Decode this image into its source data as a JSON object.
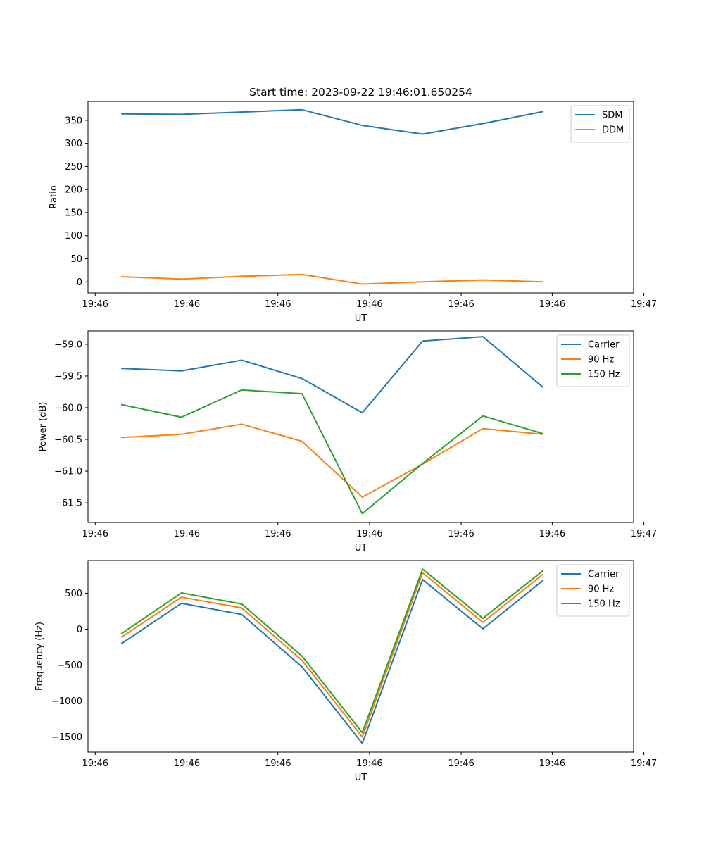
{
  "title": "Start time: 2023-09-22 19:46:01.650254",
  "colors": {
    "blue": "#1f77b4",
    "orange": "#ff7f0e",
    "green": "#2ca02c"
  },
  "chart_data": [
    {
      "type": "line",
      "title": "Start time: 2023-09-22 19:46:01.650254",
      "xlabel": "UT",
      "ylabel": "Ratio",
      "xlim": [
        -0.55,
        8.5
      ],
      "ylim": [
        -24,
        391
      ],
      "xticks": [
        {
          "v": -0.43,
          "label": "19:46"
        },
        {
          "v": 1.09,
          "label": "19:46"
        },
        {
          "v": 2.6,
          "label": "19:46"
        },
        {
          "v": 4.12,
          "label": "19:46"
        },
        {
          "v": 5.64,
          "label": "19:46"
        },
        {
          "v": 7.15,
          "label": "19:46"
        },
        {
          "v": 8.67,
          "label": "19:47"
        }
      ],
      "yticks": [
        0,
        50,
        100,
        150,
        200,
        250,
        300,
        350
      ],
      "x": [
        0,
        1,
        2,
        3,
        4,
        5,
        6,
        7
      ],
      "series": [
        {
          "name": "SDM",
          "color": "#1f77b4",
          "values": [
            364,
            363,
            368,
            373,
            339,
            320,
            343,
            369
          ]
        },
        {
          "name": "DDM",
          "color": "#ff7f0e",
          "values": [
            11,
            6,
            12,
            16,
            -5,
            0,
            4,
            0
          ]
        }
      ],
      "legend": "top-right"
    },
    {
      "type": "line",
      "xlabel": "UT",
      "ylabel": "Power (dB)",
      "xlim": [
        -0.55,
        8.5
      ],
      "ylim": [
        -61.81,
        -58.79
      ],
      "xticks": [
        {
          "v": -0.43,
          "label": "19:46"
        },
        {
          "v": 1.09,
          "label": "19:46"
        },
        {
          "v": 2.6,
          "label": "19:46"
        },
        {
          "v": 4.12,
          "label": "19:46"
        },
        {
          "v": 5.64,
          "label": "19:46"
        },
        {
          "v": 7.15,
          "label": "19:46"
        },
        {
          "v": 8.67,
          "label": "19:47"
        }
      ],
      "yticks": [
        {
          "v": -61.5,
          "label": "−61.5"
        },
        {
          "v": -61.0,
          "label": "−61.0"
        },
        {
          "v": -60.5,
          "label": "−60.5"
        },
        {
          "v": -60.0,
          "label": "−60.0"
        },
        {
          "v": -59.5,
          "label": "−59.5"
        },
        {
          "v": -59.0,
          "label": "−59.0"
        }
      ],
      "x": [
        0,
        1,
        2,
        3,
        4,
        5,
        6,
        7
      ],
      "series": [
        {
          "name": "Carrier",
          "color": "#1f77b4",
          "values": [
            -59.38,
            -59.42,
            -59.25,
            -59.54,
            -60.08,
            -58.95,
            -58.88,
            -59.68
          ]
        },
        {
          "name": "90 Hz",
          "color": "#ff7f0e",
          "values": [
            -60.47,
            -60.42,
            -60.26,
            -60.53,
            -61.41,
            -60.89,
            -60.33,
            -60.42
          ]
        },
        {
          "name": "150 Hz",
          "color": "#2ca02c",
          "values": [
            -59.95,
            -60.15,
            -59.72,
            -59.78,
            -61.67,
            -60.88,
            -60.13,
            -60.41
          ]
        }
      ],
      "legend": "top-right"
    },
    {
      "type": "line",
      "xlabel": "UT",
      "ylabel": "Frequency (Hz)",
      "xlim": [
        -0.55,
        8.5
      ],
      "ylim": [
        -1710,
        955
      ],
      "xticks": [
        {
          "v": -0.43,
          "label": "19:46"
        },
        {
          "v": 1.09,
          "label": "19:46"
        },
        {
          "v": 2.6,
          "label": "19:46"
        },
        {
          "v": 4.12,
          "label": "19:46"
        },
        {
          "v": 5.64,
          "label": "19:46"
        },
        {
          "v": 7.15,
          "label": "19:46"
        },
        {
          "v": 8.67,
          "label": "19:47"
        }
      ],
      "yticks": [
        {
          "v": -1500,
          "label": "−1500"
        },
        {
          "v": -1000,
          "label": "−1000"
        },
        {
          "v": -500,
          "label": "−500"
        },
        {
          "v": 0,
          "label": "0"
        },
        {
          "v": 500,
          "label": "500"
        }
      ],
      "x": [
        0,
        1,
        2,
        3,
        4,
        5,
        6,
        7
      ],
      "series": [
        {
          "name": "Carrier",
          "color": "#1f77b4",
          "values": [
            -205,
            360,
            205,
            -525,
            -1590,
            690,
            5,
            680
          ]
        },
        {
          "name": "90 Hz",
          "color": "#ff7f0e",
          "values": [
            -115,
            445,
            295,
            -435,
            -1500,
            785,
            95,
            765
          ]
        },
        {
          "name": "150 Hz",
          "color": "#2ca02c",
          "values": [
            -65,
            505,
            350,
            -375,
            -1440,
            835,
            150,
            815
          ]
        }
      ],
      "legend": "top-right"
    }
  ]
}
